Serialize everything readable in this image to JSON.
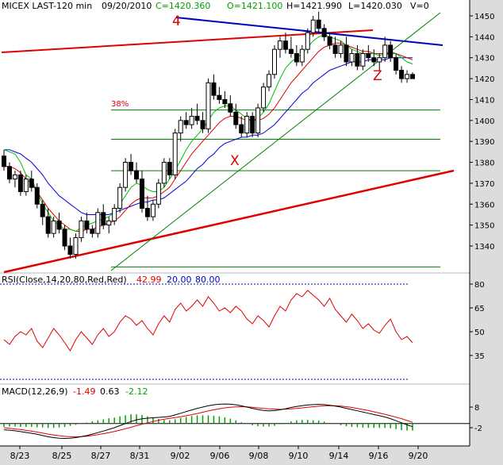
{
  "header": {
    "symbol": "MICEX LAST-120 min",
    "date": "09/20/2010",
    "close": "C=1420.360",
    "open": "O=1421.100",
    "high": "H=1421.990",
    "low": "L=1420.030",
    "volume": "V=0"
  },
  "colors": {
    "background": "#ffffff",
    "frame": "#dcdcdc",
    "candle": "#000000",
    "ma_green": "#00c000",
    "ma_red": "#e00000",
    "ma_blue": "#0000e0",
    "trend_red": "#e00000",
    "trend_blue": "#0000c0",
    "channel_green": "#008000",
    "rsi": "#e00000",
    "rsi_level": "#0000c0",
    "macd": "#000000",
    "macd_signal": "#e00000",
    "macd_hist": "#00a000"
  },
  "annotations": {
    "wave_4": "4",
    "wave_x": "X",
    "wave_z": "Z",
    "fib": "38%"
  },
  "chart_data": [
    {
      "type": "candlestick",
      "ylim": [
        1330,
        1455
      ],
      "y_ticks": [
        "1450",
        "1440",
        "1430",
        "1420",
        "1410",
        "1400",
        "1390",
        "1380",
        "1370",
        "1360",
        "1350",
        "1340"
      ],
      "x_tick_labels": [
        "8/23",
        "8/25",
        "8/27",
        "8/31",
        "9/02",
        "9/06",
        "9/08",
        "9/10",
        "9/14",
        "9/16",
        "9/20"
      ],
      "candles": [
        [
          1383,
          1386,
          1376,
          1378
        ],
        [
          1378,
          1380,
          1370,
          1372
        ],
        [
          1372,
          1376,
          1368,
          1374
        ],
        [
          1374,
          1376,
          1364,
          1366
        ],
        [
          1366,
          1374,
          1364,
          1372
        ],
        [
          1372,
          1376,
          1366,
          1368
        ],
        [
          1368,
          1370,
          1358,
          1360
        ],
        [
          1360,
          1362,
          1350,
          1354
        ],
        [
          1354,
          1358,
          1344,
          1346
        ],
        [
          1346,
          1354,
          1344,
          1352
        ],
        [
          1352,
          1356,
          1346,
          1348
        ],
        [
          1348,
          1350,
          1338,
          1340
        ],
        [
          1340,
          1344,
          1334,
          1336
        ],
        [
          1336,
          1346,
          1334,
          1344
        ],
        [
          1344,
          1354,
          1342,
          1352
        ],
        [
          1352,
          1356,
          1346,
          1348
        ],
        [
          1348,
          1350,
          1344,
          1346
        ],
        [
          1346,
          1358,
          1344,
          1356
        ],
        [
          1356,
          1360,
          1348,
          1350
        ],
        [
          1350,
          1354,
          1346,
          1352
        ],
        [
          1352,
          1360,
          1350,
          1358
        ],
        [
          1358,
          1370,
          1356,
          1368
        ],
        [
          1368,
          1382,
          1366,
          1380
        ],
        [
          1380,
          1384,
          1374,
          1376
        ],
        [
          1376,
          1380,
          1370,
          1372
        ],
        [
          1372,
          1376,
          1356,
          1358
        ],
        [
          1358,
          1364,
          1352,
          1354
        ],
        [
          1354,
          1362,
          1352,
          1360
        ],
        [
          1360,
          1372,
          1358,
          1370
        ],
        [
          1370,
          1382,
          1368,
          1380
        ],
        [
          1380,
          1382,
          1372,
          1374
        ],
        [
          1374,
          1396,
          1372,
          1394
        ],
        [
          1394,
          1402,
          1390,
          1400
        ],
        [
          1400,
          1404,
          1396,
          1398
        ],
        [
          1398,
          1406,
          1396,
          1402
        ],
        [
          1402,
          1408,
          1398,
          1400
        ],
        [
          1400,
          1404,
          1394,
          1396
        ],
        [
          1396,
          1420,
          1394,
          1418
        ],
        [
          1418,
          1422,
          1410,
          1412
        ],
        [
          1412,
          1416,
          1408,
          1410
        ],
        [
          1410,
          1414,
          1406,
          1408
        ],
        [
          1408,
          1412,
          1402,
          1404
        ],
        [
          1404,
          1408,
          1396,
          1398
        ],
        [
          1398,
          1402,
          1392,
          1394
        ],
        [
          1394,
          1404,
          1392,
          1402
        ],
        [
          1402,
          1404,
          1392,
          1394
        ],
        [
          1394,
          1408,
          1392,
          1406
        ],
        [
          1406,
          1418,
          1404,
          1416
        ],
        [
          1416,
          1424,
          1414,
          1422
        ],
        [
          1422,
          1436,
          1420,
          1434
        ],
        [
          1434,
          1440,
          1430,
          1438
        ],
        [
          1438,
          1442,
          1432,
          1434
        ],
        [
          1434,
          1440,
          1430,
          1432
        ],
        [
          1432,
          1436,
          1426,
          1428
        ],
        [
          1428,
          1436,
          1426,
          1434
        ],
        [
          1434,
          1444,
          1432,
          1442
        ],
        [
          1442,
          1450,
          1440,
          1448
        ],
        [
          1448,
          1452,
          1442,
          1444
        ],
        [
          1444,
          1446,
          1438,
          1440
        ],
        [
          1440,
          1442,
          1434,
          1436
        ],
        [
          1436,
          1440,
          1430,
          1432
        ],
        [
          1432,
          1438,
          1430,
          1436
        ],
        [
          1436,
          1440,
          1426,
          1428
        ],
        [
          1428,
          1434,
          1426,
          1432
        ],
        [
          1432,
          1436,
          1424,
          1426
        ],
        [
          1426,
          1434,
          1424,
          1432
        ],
        [
          1432,
          1436,
          1428,
          1430
        ],
        [
          1430,
          1434,
          1426,
          1428
        ],
        [
          1428,
          1432,
          1424,
          1430
        ],
        [
          1430,
          1440,
          1428,
          1436
        ],
        [
          1436,
          1438,
          1428,
          1430
        ],
        [
          1430,
          1432,
          1422,
          1424
        ],
        [
          1424,
          1426,
          1418,
          1420
        ],
        [
          1420,
          1424,
          1418,
          1422
        ],
        [
          1422,
          1423,
          1420,
          1420
        ]
      ],
      "ma_green": [
        1386,
        1385,
        1384,
        1380,
        1374,
        1372,
        1366,
        1360,
        1356,
        1352,
        1350,
        1348,
        1348,
        1347,
        1349,
        1350,
        1351,
        1352,
        1353,
        1354,
        1356,
        1360,
        1364,
        1368,
        1370,
        1369,
        1367,
        1366,
        1366,
        1368,
        1372,
        1376,
        1381,
        1386,
        1390,
        1393,
        1396,
        1400,
        1404,
        1406,
        1407,
        1407,
        1405,
        1403,
        1401,
        1400,
        1401,
        1404,
        1408,
        1414,
        1420,
        1425,
        1428,
        1430,
        1432,
        1435,
        1438,
        1440,
        1441,
        1440,
        1439,
        1438,
        1436,
        1434,
        1433,
        1432,
        1432,
        1432,
        1431,
        1432,
        1433,
        1432,
        1430,
        1428,
        1427
      ],
      "ma_red": [
        1378,
        1378,
        1377,
        1375,
        1372,
        1370,
        1366,
        1362,
        1358,
        1355,
        1352,
        1350,
        1348,
        1347,
        1347,
        1348,
        1348,
        1349,
        1350,
        1351,
        1352,
        1354,
        1357,
        1360,
        1362,
        1363,
        1363,
        1363,
        1364,
        1366,
        1368,
        1372,
        1376,
        1380,
        1384,
        1387,
        1390,
        1393,
        1396,
        1399,
        1401,
        1402,
        1402,
        1401,
        1400,
        1400,
        1400,
        1401,
        1403,
        1406,
        1410,
        1414,
        1418,
        1421,
        1424,
        1427,
        1430,
        1433,
        1435,
        1436,
        1437,
        1437,
        1436,
        1435,
        1434,
        1433,
        1433,
        1432,
        1432,
        1432,
        1432,
        1432,
        1431,
        1430,
        1429
      ],
      "ma_blue": [
        1386,
        1386,
        1385,
        1384,
        1382,
        1380,
        1377,
        1374,
        1370,
        1367,
        1364,
        1362,
        1360,
        1358,
        1356,
        1355,
        1355,
        1355,
        1355,
        1355,
        1356,
        1357,
        1358,
        1359,
        1360,
        1361,
        1361,
        1362,
        1362,
        1363,
        1365,
        1367,
        1369,
        1371,
        1374,
        1377,
        1379,
        1382,
        1384,
        1387,
        1389,
        1390,
        1391,
        1392,
        1392,
        1393,
        1393,
        1394,
        1396,
        1398,
        1401,
        1404,
        1407,
        1410,
        1413,
        1415,
        1418,
        1420,
        1422,
        1424,
        1425,
        1426,
        1427,
        1428,
        1428,
        1428,
        1429,
        1429,
        1429,
        1429,
        1430,
        1430,
        1430,
        1430,
        1430
      ]
    },
    {
      "type": "line",
      "label": "RSI(Close,14,20,80,Red,Red)",
      "value_label": "42.99",
      "level_low_label": "20.00",
      "level_high_label": "80.00",
      "ylim": [
        20,
        88
      ],
      "y_ticks": [
        "80",
        "65",
        "50",
        "35"
      ],
      "values": [
        45,
        42,
        47,
        50,
        48,
        52,
        44,
        40,
        46,
        52,
        48,
        43,
        38,
        45,
        50,
        46,
        42,
        48,
        52,
        47,
        50,
        56,
        60,
        58,
        54,
        57,
        52,
        48,
        55,
        60,
        56,
        64,
        68,
        63,
        66,
        70,
        66,
        72,
        68,
        63,
        65,
        62,
        66,
        63,
        58,
        55,
        60,
        57,
        53,
        60,
        66,
        63,
        70,
        74,
        72,
        76,
        73,
        70,
        66,
        71,
        64,
        60,
        56,
        61,
        57,
        52,
        55,
        51,
        49,
        54,
        58,
        50,
        45,
        47,
        43
      ]
    },
    {
      "type": "line",
      "label": "MACD(12,26,9)",
      "value_macd": "-1.49",
      "value_signal": "0.63",
      "value_hist": "-2.12",
      "ylim": [
        -8,
        14
      ],
      "y_ticks": [
        "8",
        "-2"
      ],
      "macd": [
        -3,
        -3.2,
        -3.5,
        -3.9,
        -4.3,
        -4.7,
        -5.2,
        -5.8,
        -6.4,
        -6.8,
        -7.1,
        -7.2,
        -7.1,
        -6.8,
        -6.3,
        -5.8,
        -5.1,
        -4.4,
        -3.6,
        -2.8,
        -2,
        -1,
        0,
        1,
        1.8,
        2.3,
        2.6,
        2.8,
        3,
        3.2,
        3.5,
        4.2,
        5,
        5.8,
        6.6,
        7.4,
        8,
        8.6,
        9.1,
        9.4,
        9.5,
        9.4,
        9.1,
        8.6,
        8,
        7.4,
        6.8,
        6.4,
        6.2,
        6.3,
        6.7,
        7.2,
        7.8,
        8.3,
        8.7,
        9,
        9.2,
        9.3,
        9.2,
        8.9,
        8.5,
        8,
        7.4,
        6.8,
        6.2,
        5.6,
        5,
        4.4,
        3.8,
        3.2,
        2.4,
        1.4,
        0.4,
        -0.6,
        -1.49
      ],
      "signal": [
        -2,
        -2.3,
        -2.6,
        -2.9,
        -3.3,
        -3.7,
        -4.1,
        -4.6,
        -5.1,
        -5.5,
        -5.9,
        -6.2,
        -6.4,
        -6.4,
        -6.3,
        -6.1,
        -5.8,
        -5.4,
        -4.9,
        -4.4,
        -3.8,
        -3.2,
        -2.5,
        -1.8,
        -1,
        -0.3,
        0.4,
        1,
        1.6,
        2.1,
        2.5,
        2.9,
        3.3,
        3.8,
        4.3,
        4.9,
        5.5,
        6.1,
        6.7,
        7.2,
        7.6,
        7.9,
        8.1,
        8.2,
        8.1,
        7.9,
        7.6,
        7.3,
        7.1,
        7,
        6.9,
        7,
        7.1,
        7.3,
        7.6,
        7.9,
        8.2,
        8.4,
        8.6,
        8.7,
        8.6,
        8.5,
        8.2,
        7.8,
        7.3,
        6.8,
        6.3,
        5.7,
        5.1,
        4.5,
        3.8,
        3.1,
        2.4,
        1.5,
        0.63
      ]
    }
  ]
}
